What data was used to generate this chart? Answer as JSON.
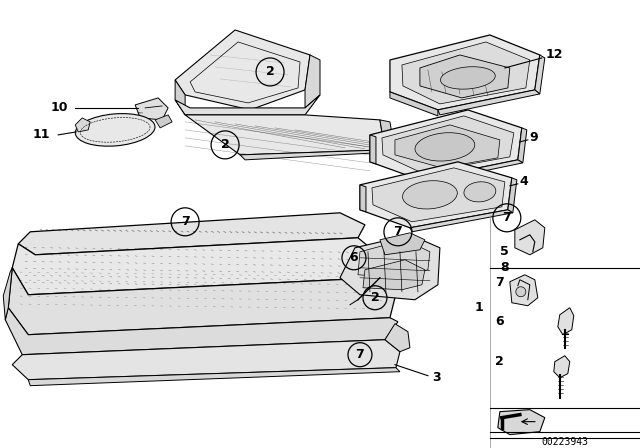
{
  "bg_color": "#ffffff",
  "diagram_number": "00223943",
  "line_color": "#000000",
  "fill_color": "#f0f0f0",
  "dot_color": "#555555"
}
